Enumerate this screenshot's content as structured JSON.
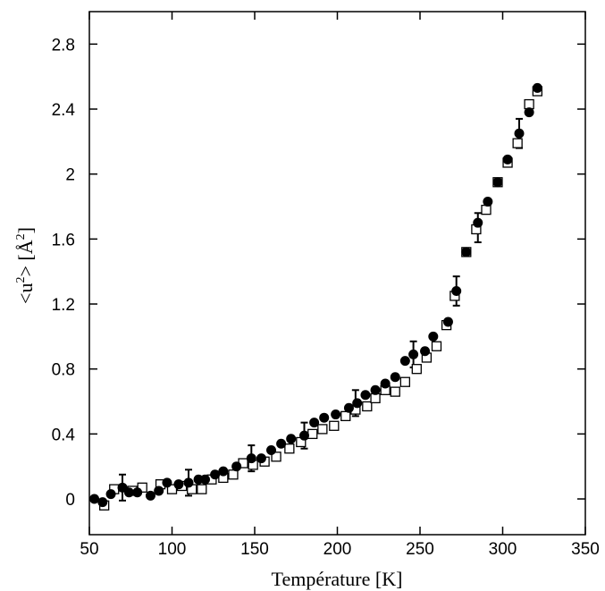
{
  "chart_data": {
    "type": "scatter",
    "title": "",
    "xlabel": "Température [K]",
    "ylabel_parts": [
      "<u",
      "2",
      "> [Å",
      "2",
      "]"
    ],
    "xlim": [
      50,
      350
    ],
    "ylim": [
      -0.22,
      3.0
    ],
    "xticks": [
      50,
      100,
      150,
      200,
      250,
      300,
      350
    ],
    "yticks": [
      0,
      0.4,
      0.8,
      1.2,
      1.6,
      2,
      2.4,
      2.8
    ],
    "ytick_labels": [
      "0",
      "0.4",
      "0.8",
      "1.2",
      "1.6",
      "2",
      "2.4",
      "2.8"
    ],
    "grid": false,
    "legend": "none",
    "series": [
      {
        "marker": "filled-circle",
        "color": "#000000",
        "x": [
          53,
          58,
          63,
          70,
          74,
          79,
          87,
          92,
          97,
          104,
          110,
          116,
          120,
          126,
          131,
          139,
          148,
          154,
          160,
          166,
          172,
          180,
          186,
          192,
          199,
          207,
          212,
          217,
          223,
          229,
          235,
          241,
          246,
          253,
          258,
          267,
          272,
          278,
          285,
          291,
          297,
          303,
          310,
          316,
          321
        ],
        "y": [
          0.0,
          -0.02,
          0.03,
          0.07,
          0.04,
          0.04,
          0.02,
          0.05,
          0.1,
          0.09,
          0.1,
          0.12,
          0.12,
          0.15,
          0.17,
          0.2,
          0.25,
          0.25,
          0.3,
          0.34,
          0.37,
          0.39,
          0.47,
          0.5,
          0.52,
          0.56,
          0.59,
          0.64,
          0.67,
          0.71,
          0.75,
          0.85,
          0.89,
          0.91,
          1.0,
          1.09,
          1.28,
          1.52,
          1.7,
          1.83,
          1.95,
          2.09,
          2.25,
          2.38,
          2.53
        ],
        "error_bars": [
          {
            "x": 70,
            "y": 0.07,
            "err": 0.08
          },
          {
            "x": 110,
            "y": 0.1,
            "err": 0.08
          },
          {
            "x": 148,
            "y": 0.25,
            "err": 0.08
          },
          {
            "x": 180,
            "y": 0.39,
            "err": 0.08
          },
          {
            "x": 211,
            "y": 0.59,
            "err": 0.08
          },
          {
            "x": 246,
            "y": 0.89,
            "err": 0.08
          },
          {
            "x": 272,
            "y": 1.28,
            "err": 0.09
          },
          {
            "x": 285,
            "y": 1.67,
            "err": 0.09
          },
          {
            "x": 310,
            "y": 2.25,
            "err": 0.09
          }
        ]
      },
      {
        "marker": "open-square",
        "color": "#000000",
        "x": [
          59,
          65,
          76,
          82,
          93,
          100,
          106,
          112,
          118,
          124,
          131,
          137,
          143,
          149,
          156,
          163,
          171,
          178,
          185,
          191,
          198,
          205,
          211,
          218,
          223,
          229,
          235,
          241,
          248,
          254,
          260,
          266,
          271,
          278,
          284,
          290,
          297,
          303,
          309,
          316,
          321
        ],
        "y": [
          -0.04,
          0.06,
          0.05,
          0.07,
          0.09,
          0.06,
          0.08,
          0.06,
          0.06,
          0.12,
          0.13,
          0.15,
          0.22,
          0.21,
          0.23,
          0.26,
          0.31,
          0.35,
          0.4,
          0.43,
          0.45,
          0.51,
          0.55,
          0.57,
          0.62,
          0.67,
          0.66,
          0.72,
          0.8,
          0.87,
          0.94,
          1.07,
          1.25,
          1.52,
          1.66,
          1.78,
          1.95,
          2.07,
          2.19,
          2.43,
          2.51
        ]
      }
    ]
  }
}
